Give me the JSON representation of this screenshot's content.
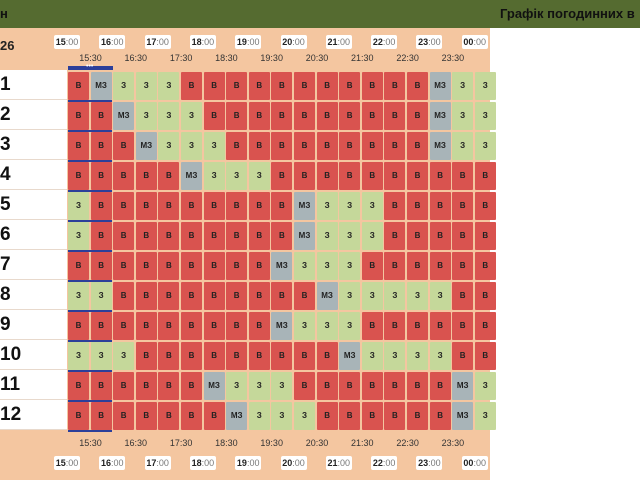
{
  "banner": {
    "left_mark": "н",
    "title": "Графік погодинних в"
  },
  "corner": "26",
  "hours": [
    {
      "h": "15",
      "m": ":00"
    },
    {
      "h": "16",
      "m": ":00"
    },
    {
      "h": "17",
      "m": ":00"
    },
    {
      "h": "18",
      "m": ":00"
    },
    {
      "h": "19",
      "m": ":00"
    },
    {
      "h": "20",
      "m": ":00"
    },
    {
      "h": "21",
      "m": ":00"
    },
    {
      "h": "22",
      "m": ":00"
    },
    {
      "h": "23",
      "m": ":00"
    },
    {
      "h": "00",
      "m": ":00"
    }
  ],
  "halves": [
    "15:30",
    "16:30",
    "17:30",
    "18:30",
    "19:30",
    "20:30",
    "21:30",
    "22:30",
    "23:30"
  ],
  "legend": {
    "B": "в",
    "Z": "з",
    "M": "мз"
  },
  "groups": [
    {
      "label": "1",
      "cells": "BMZZZBBBBBBBBBBBMZZ"
    },
    {
      "label": "2",
      "cells": "BBMZZZBBBBBBBBBBMZZ"
    },
    {
      "label": "3",
      "cells": "BBBMZZZBBBBBBBBBMZZ"
    },
    {
      "label": "4",
      "cells": "BBBBBMZZZBBBBBBBBBB"
    },
    {
      "label": "5",
      "cells": "ZBBBBBBBBBMZZZBBBBB"
    },
    {
      "label": "6",
      "cells": "ZBBBBBBBBBMZZZBBBBB"
    },
    {
      "label": "7",
      "cells": "BBBBBBBBBMZZZBBBBBB"
    },
    {
      "label": "8",
      "cells": "ZZBBBBBBBBBMZZZZZBB"
    },
    {
      "label": "9",
      "cells": "BBBBBBBBBMZZZBBBBBB"
    },
    {
      "label": "10",
      "cells": "ZZZBBBBBBBBBMZZZZBB"
    },
    {
      "label": "11",
      "cells": "BBBBBBMZZZBBBBBBBMZ"
    },
    {
      "label": "12",
      "cells": "BBBBBBBMZZZBBBBBBMZ"
    }
  ]
}
